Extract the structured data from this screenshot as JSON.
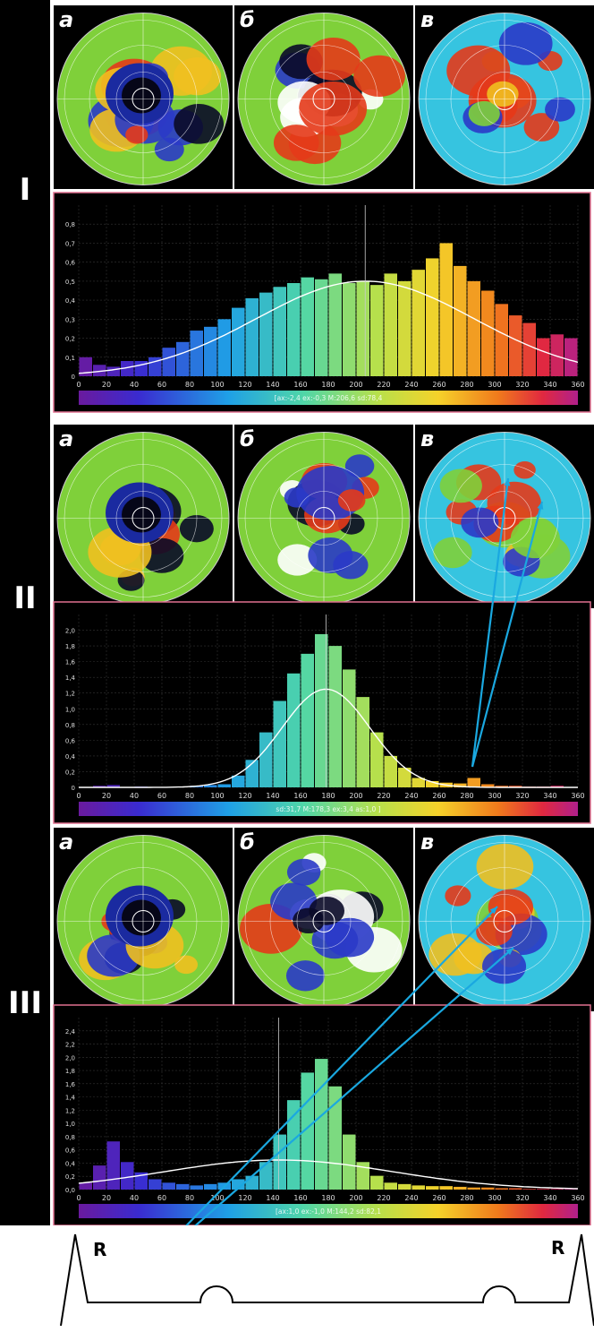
{
  "sections": [
    {
      "roman": "I",
      "map_labels": [
        "а",
        "б",
        "в"
      ],
      "stats_text": "[ax:-2,4 ex:-0,3 M:206,6 sd:78,4",
      "curve_peak": 0.5,
      "curve_mean": 206.6,
      "curve_sd": 78.4
    },
    {
      "roman": "II",
      "map_labels": [
        "а",
        "б",
        "в"
      ],
      "stats_text": "sd:31,7  M:178,3 ex:3,4  as:1,0 ]",
      "curve_peak": 1.25,
      "curve_mean": 178.3,
      "curve_sd": 31.7
    },
    {
      "roman": "III",
      "map_labels": [
        "а",
        "б",
        "в"
      ],
      "stats_text": "[ax:1,0 ex:-1,0 M:144,2 sd:82,1",
      "curve_peak": 0.43,
      "curve_mean": 144.2,
      "curve_sd": 82.1
    }
  ],
  "chart_data": [
    {
      "type": "bar",
      "title": "",
      "xlabel": "",
      "ylabel": "",
      "xlim": [
        0,
        360
      ],
      "ylim": [
        0,
        0.9
      ],
      "grid": true,
      "x_ticks": [
        "0",
        "20",
        "40",
        "60",
        "80",
        "100",
        "120",
        "140",
        "160",
        "180",
        "200",
        "220",
        "240",
        "260",
        "280",
        "300",
        "320",
        "340",
        "360"
      ],
      "y_ticks": [
        "0",
        "0,1",
        "0,2",
        "0,3",
        "0,4",
        "0,5",
        "0,6",
        "0,7",
        "0,8"
      ],
      "x": [
        5,
        15,
        25,
        35,
        45,
        55,
        65,
        75,
        85,
        95,
        105,
        115,
        125,
        135,
        145,
        155,
        165,
        175,
        185,
        195,
        205,
        215,
        225,
        235,
        245,
        255,
        265,
        275,
        285,
        295,
        305,
        315,
        325,
        335,
        345,
        355
      ],
      "values": [
        0.1,
        0.06,
        0.05,
        0.08,
        0.08,
        0.1,
        0.15,
        0.18,
        0.24,
        0.26,
        0.3,
        0.36,
        0.41,
        0.44,
        0.47,
        0.49,
        0.52,
        0.51,
        0.54,
        0.49,
        0.5,
        0.48,
        0.54,
        0.5,
        0.56,
        0.62,
        0.7,
        0.58,
        0.5,
        0.45,
        0.38,
        0.32,
        0.28,
        0.2,
        0.22,
        0.2
      ]
    },
    {
      "type": "bar",
      "title": "",
      "xlabel": "",
      "ylabel": "",
      "xlim": [
        0,
        360
      ],
      "ylim": [
        0,
        2.2
      ],
      "grid": true,
      "x_ticks": [
        "0",
        "20",
        "40",
        "60",
        "80",
        "100",
        "120",
        "140",
        "160",
        "180",
        "200",
        "220",
        "240",
        "260",
        "280",
        "300",
        "320",
        "340",
        "360"
      ],
      "y_ticks": [
        "0",
        "0,2",
        "0,4",
        "0,6",
        "0,8",
        "1,0",
        "1,2",
        "1,4",
        "1,6",
        "1,8",
        "2,0"
      ],
      "x": [
        5,
        15,
        25,
        35,
        45,
        55,
        65,
        75,
        85,
        95,
        105,
        115,
        125,
        135,
        145,
        155,
        165,
        175,
        185,
        195,
        205,
        215,
        225,
        235,
        245,
        255,
        265,
        275,
        285,
        295,
        305,
        315,
        325,
        335,
        345,
        355
      ],
      "values": [
        0,
        0.02,
        0.03,
        0,
        0.01,
        0,
        0,
        0,
        0.02,
        0.03,
        0.04,
        0.15,
        0.35,
        0.7,
        1.1,
        1.45,
        1.7,
        1.95,
        1.8,
        1.5,
        1.15,
        0.7,
        0.4,
        0.25,
        0.12,
        0.08,
        0.06,
        0.05,
        0.12,
        0.04,
        0.02,
        0.02,
        0.01,
        0.01,
        0.02,
        0
      ]
    },
    {
      "type": "bar",
      "title": "",
      "xlabel": "",
      "ylabel": "",
      "xlim": [
        0,
        360
      ],
      "ylim": [
        0,
        2.5
      ],
      "grid": true,
      "x_ticks": [
        "0",
        "20",
        "40",
        "60",
        "80",
        "100",
        "120",
        "140",
        "160",
        "180",
        "200",
        "220",
        "240",
        "260",
        "280",
        "300",
        "320",
        "340",
        "360"
      ],
      "y_ticks": [
        "0,0",
        "0,2",
        "0,4",
        "0,6",
        "0,8",
        "1,0",
        "1,2",
        "1,4",
        "1,6",
        "1,8",
        "2,0",
        "2,2",
        "2,4"
      ],
      "x": [
        5,
        15,
        25,
        35,
        45,
        55,
        65,
        75,
        85,
        95,
        105,
        115,
        125,
        135,
        145,
        155,
        165,
        175,
        185,
        195,
        205,
        215,
        225,
        235,
        245,
        255,
        265,
        275,
        285,
        295,
        305,
        315,
        325,
        335,
        345,
        355
      ],
      "values": [
        0.1,
        0.35,
        0.7,
        0.4,
        0.25,
        0.15,
        0.1,
        0.08,
        0.06,
        0.08,
        0.1,
        0.15,
        0.2,
        0.4,
        0.8,
        1.3,
        1.7,
        1.9,
        1.5,
        0.8,
        0.4,
        0.2,
        0.1,
        0.08,
        0.06,
        0.05,
        0.05,
        0.04,
        0.03,
        0.03,
        0.02,
        0.02,
        0.01,
        0.01,
        0.01,
        0.01
      ]
    }
  ],
  "ecg": {
    "r_left": "R",
    "r_right": "R"
  }
}
